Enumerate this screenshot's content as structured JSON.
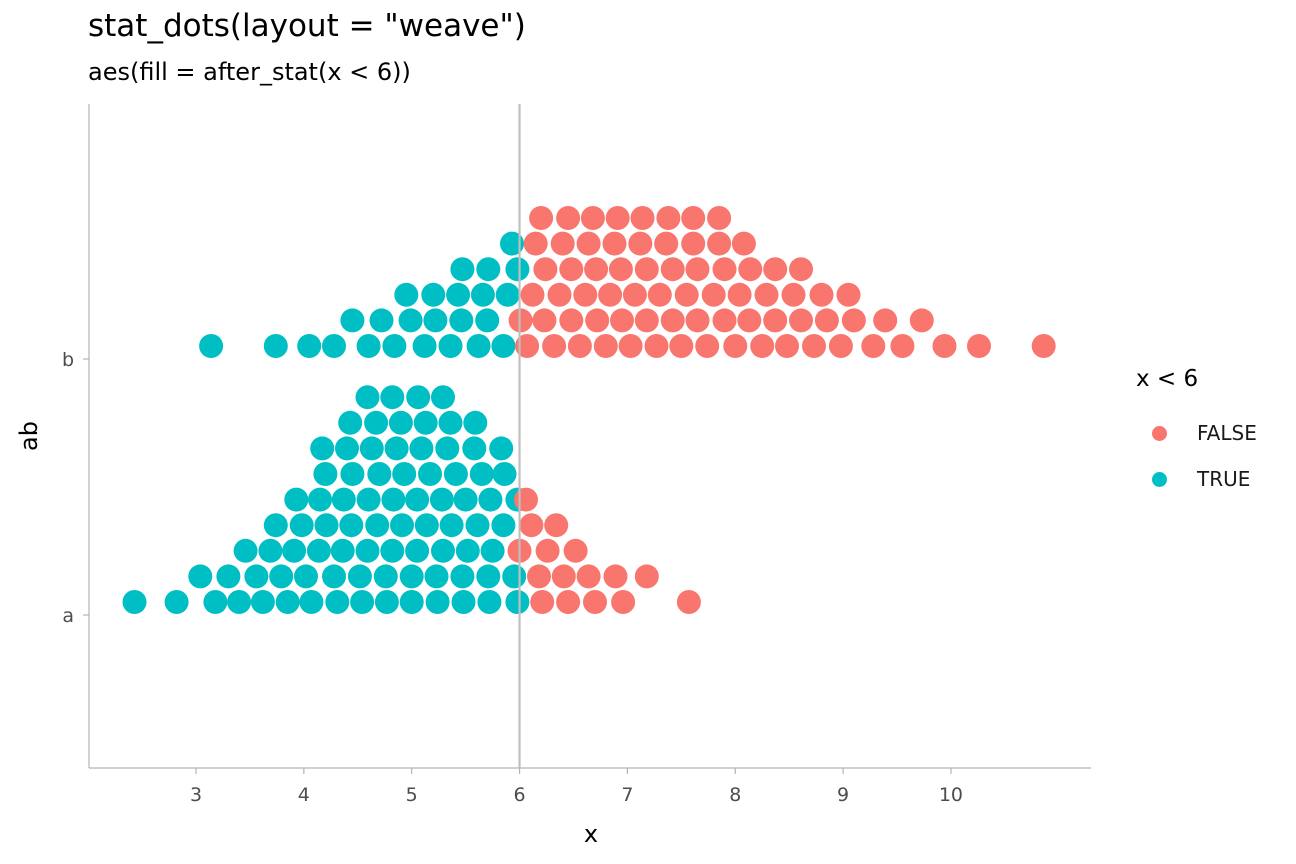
{
  "chart_data": {
    "type": "scatter",
    "title": "stat_dots(layout = \"weave\")",
    "subtitle": "aes(fill = after_stat(x < 6))",
    "xlabel": "x",
    "ylabel": "ab",
    "xlim": [
      2.0,
      11.25
    ],
    "x_ticks": [
      3,
      4,
      5,
      6,
      7,
      8,
      9,
      10
    ],
    "categories": [
      "a",
      "b"
    ],
    "reference_line_x": 6,
    "grid": false,
    "legend": {
      "title": "x < 6",
      "position": "right",
      "entries": [
        {
          "label": "FALSE",
          "color": "#F8766D"
        },
        {
          "label": "TRUE",
          "color": "#00BFC4"
        }
      ]
    },
    "series": [
      {
        "category": "b",
        "rows": [
          [
            3.14,
            3.74,
            4.05,
            4.28,
            4.6,
            4.84,
            5.12,
            5.36,
            5.62,
            5.85,
            6.07,
            6.32,
            6.56,
            6.8,
            7.03,
            7.27,
            7.5,
            7.74,
            8.0,
            8.25,
            8.48,
            8.73,
            8.98,
            9.28,
            9.55,
            9.94,
            10.26,
            10.86
          ],
          [
            4.45,
            4.72,
            4.99,
            5.22,
            5.46,
            5.7,
            6.01,
            6.23,
            6.48,
            6.72,
            6.95,
            7.18,
            7.42,
            7.65,
            7.9,
            8.13,
            8.37,
            8.61,
            8.85,
            9.1,
            9.39,
            9.73
          ],
          [
            4.95,
            5.2,
            5.43,
            5.66,
            5.89,
            6.12,
            6.37,
            6.61,
            6.84,
            7.07,
            7.3,
            7.55,
            7.8,
            8.04,
            8.29,
            8.54,
            8.8,
            9.05
          ],
          [
            5.47,
            5.71,
            5.98,
            6.24,
            6.48,
            6.71,
            6.94,
            7.18,
            7.42,
            7.65,
            7.9,
            8.14,
            8.37,
            8.61
          ],
          [
            5.93,
            6.15,
            6.4,
            6.64,
            6.88,
            7.12,
            7.36,
            7.61,
            7.85,
            8.08
          ],
          [
            6.2,
            6.45,
            6.68,
            6.91,
            7.14,
            7.38,
            7.61,
            7.85
          ]
        ]
      },
      {
        "category": "a",
        "rows": [
          [
            2.43,
            2.82,
            3.18,
            3.4,
            3.62,
            3.85,
            4.07,
            4.31,
            4.54,
            4.77,
            5.0,
            5.24,
            5.48,
            5.72,
            5.98,
            6.21,
            6.45,
            6.7,
            6.96,
            7.57
          ],
          [
            3.04,
            3.3,
            3.56,
            3.79,
            4.02,
            4.28,
            4.52,
            4.76,
            5.0,
            5.23,
            5.47,
            5.71,
            5.95,
            6.18,
            6.41,
            6.64,
            6.89,
            7.18
          ],
          [
            3.46,
            3.69,
            3.91,
            4.14,
            4.36,
            4.59,
            4.82,
            5.05,
            5.29,
            5.52,
            5.75,
            6.0,
            6.26,
            6.52
          ],
          [
            3.74,
            3.98,
            4.21,
            4.44,
            4.68,
            4.91,
            5.14,
            5.37,
            5.61,
            5.85,
            6.11,
            6.34
          ],
          [
            3.93,
            4.15,
            4.37,
            4.6,
            4.83,
            5.05,
            5.28,
            5.5,
            5.73,
            5.98,
            6.06
          ],
          [
            4.2,
            4.45,
            4.7,
            4.93,
            5.17,
            5.41,
            5.65,
            5.86
          ],
          [
            4.17,
            4.4,
            4.63,
            4.86,
            5.09,
            5.33,
            5.58,
            5.83
          ],
          [
            4.43,
            4.67,
            4.9,
            5.13,
            5.36,
            5.59
          ],
          [
            4.59,
            4.82,
            5.06,
            5.29
          ]
        ]
      }
    ]
  }
}
